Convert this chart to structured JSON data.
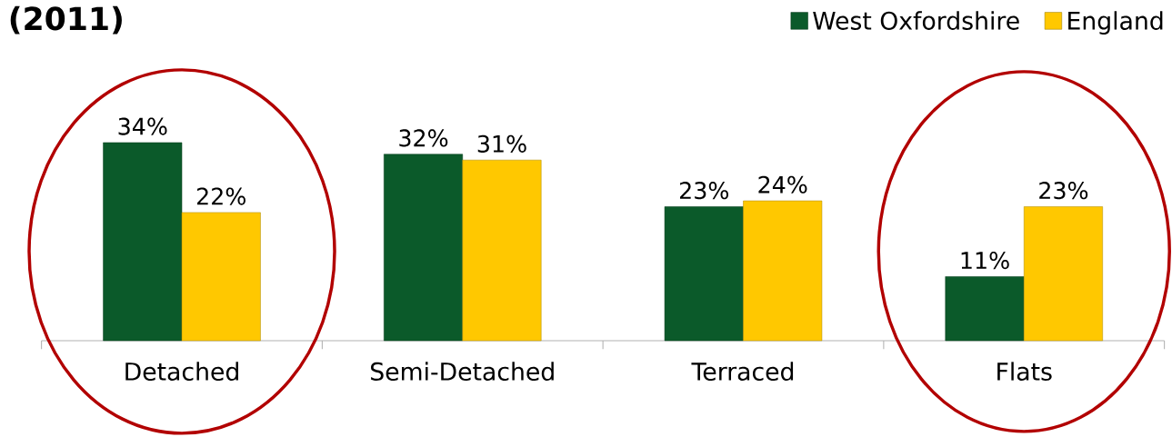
{
  "chart_data": {
    "type": "bar",
    "title": "(2011)",
    "categories": [
      "Detached",
      "Semi-Detached",
      "Terraced",
      "Flats"
    ],
    "series": [
      {
        "name": "West Oxfordshire",
        "color": "#0b5a2a",
        "values": [
          34,
          32,
          23,
          11
        ],
        "value_labels": [
          "34%",
          "32%",
          "23%",
          "11%"
        ]
      },
      {
        "name": "England",
        "color": "#ffc800",
        "values": [
          22,
          31,
          24,
          23
        ],
        "value_labels": [
          "22%",
          "31%",
          "24%",
          "23%"
        ]
      }
    ],
    "legend": "top right"
  }
}
